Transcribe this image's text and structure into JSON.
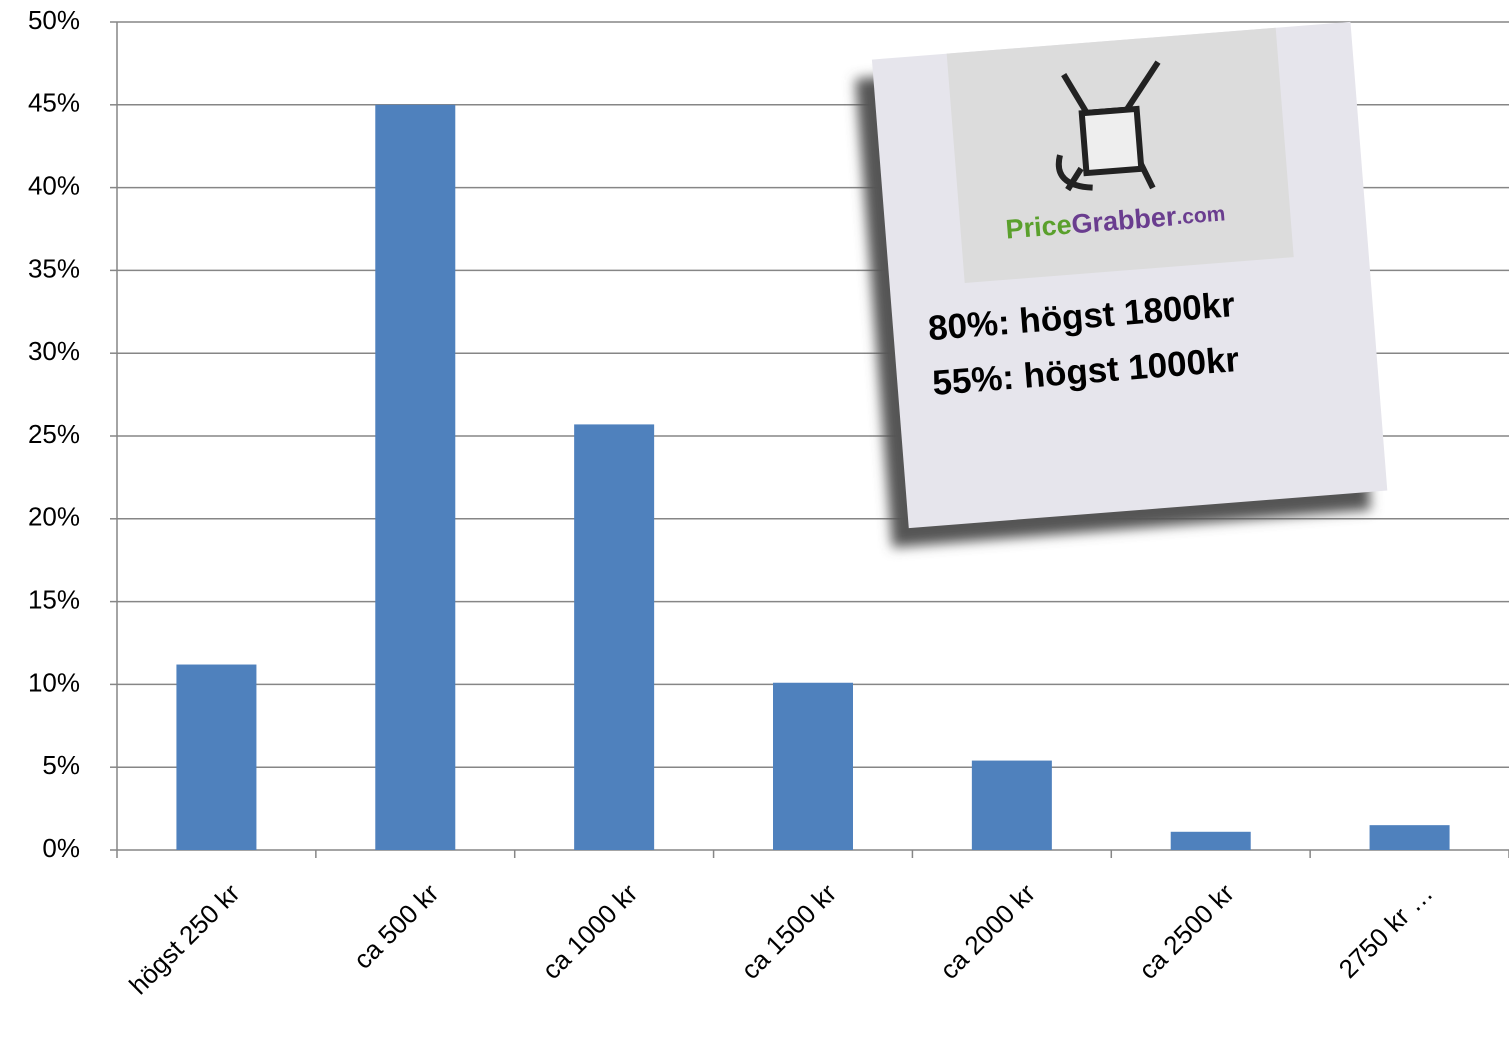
{
  "chart_data": {
    "type": "bar",
    "categories": [
      "högst 250 kr",
      "ca 500 kr",
      "ca 1000 kr",
      "ca 1500 kr",
      "ca 2000 kr",
      "ca 2500 kr",
      "2750 kr …"
    ],
    "values": [
      11.2,
      45.0,
      25.7,
      10.1,
      5.4,
      1.1,
      1.5
    ],
    "color": "#4f81bd",
    "ylim": [
      0,
      50
    ],
    "yticks": [
      {
        "value": 0,
        "label": "0%"
      },
      {
        "value": 5,
        "label": "5%"
      },
      {
        "value": 10,
        "label": "10%"
      },
      {
        "value": 15,
        "label": "15%"
      },
      {
        "value": 20,
        "label": "20%"
      },
      {
        "value": 25,
        "label": "25%"
      },
      {
        "value": 30,
        "label": "30%"
      },
      {
        "value": 35,
        "label": "35%"
      },
      {
        "value": 40,
        "label": "40%"
      },
      {
        "value": 45,
        "label": "45%"
      },
      {
        "value": 50,
        "label": "50%"
      }
    ],
    "grid": true,
    "annotation": {
      "logo": [
        "Price",
        "Grabber",
        ".com"
      ],
      "lines": [
        "80%: högst 1800kr",
        "55%: högst 1000kr"
      ]
    }
  }
}
